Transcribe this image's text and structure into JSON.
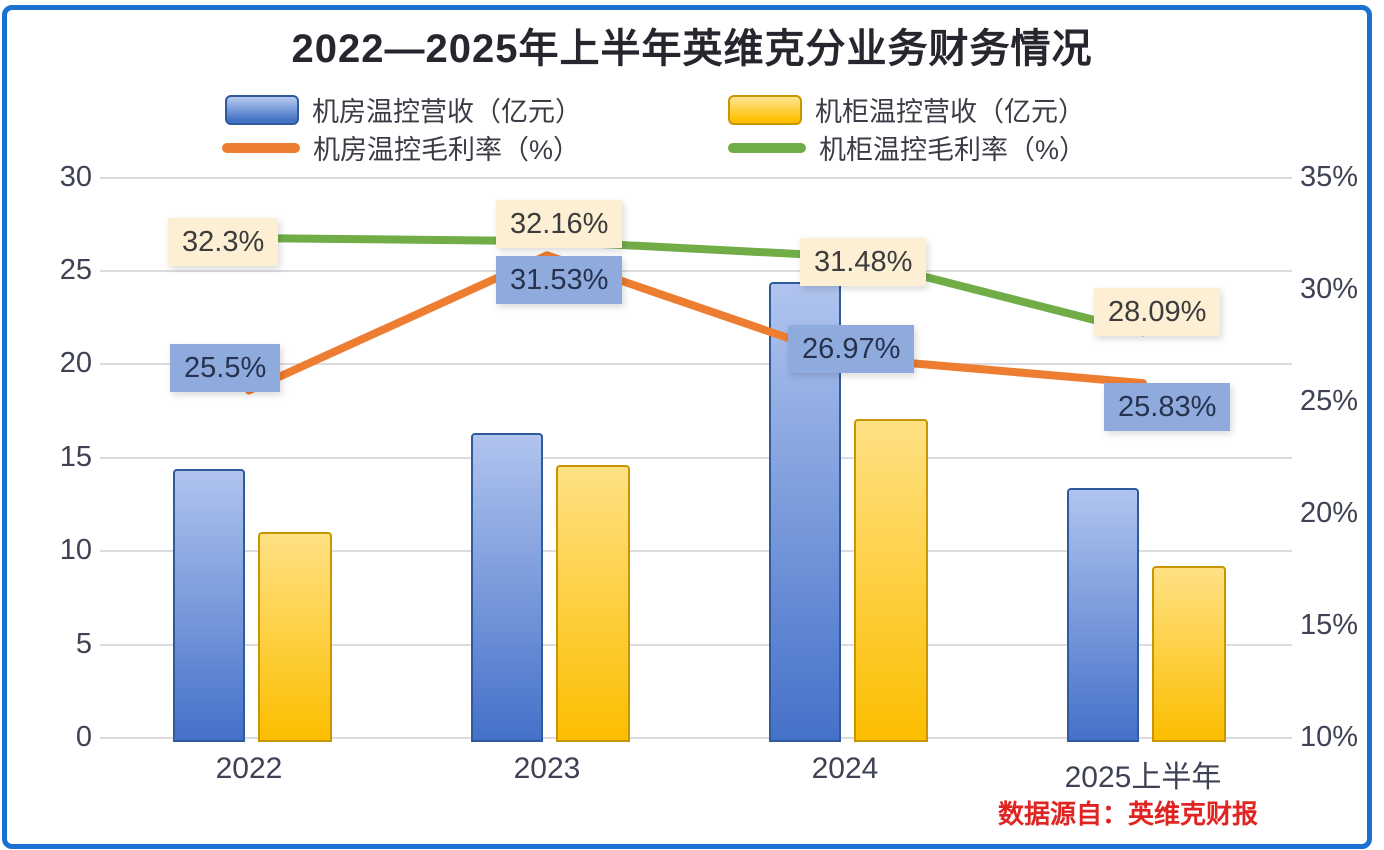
{
  "chart_data": {
    "type": "combo-bar-line",
    "title": "2022—2025年上半年英维克分业务财务情况",
    "categories": [
      "2022",
      "2023",
      "2024",
      "2025上半年"
    ],
    "series": [
      {
        "name": "机房温控营收（亿元）",
        "type": "bar",
        "axis": "left",
        "color": "#4472C4",
        "values": [
          14.4,
          16.3,
          24.4,
          13.4
        ]
      },
      {
        "name": "机柜温控营收（亿元）",
        "type": "bar",
        "axis": "left",
        "color": "#FFC000",
        "values": [
          11.0,
          14.6,
          17.1,
          9.2
        ]
      },
      {
        "name": "机房温控毛利率（%）",
        "type": "line",
        "axis": "right",
        "color": "#ED7D31",
        "values": [
          25.5,
          31.53,
          26.97,
          25.83
        ],
        "point_labels": [
          "25.5%",
          "31.53%",
          "26.97%",
          "25.83%"
        ],
        "label_style": "blue"
      },
      {
        "name": "机柜温控毛利率（%）",
        "type": "line",
        "axis": "right",
        "color": "#70AD47",
        "values": [
          32.3,
          32.16,
          31.48,
          28.09
        ],
        "point_labels": [
          "32.3%",
          "32.16%",
          "31.48%",
          "28.09%"
        ],
        "label_style": "cream"
      }
    ],
    "left_axis": {
      "min": 0,
      "max": 30,
      "tick_step": 5,
      "ticks": [
        "0",
        "5",
        "10",
        "15",
        "20",
        "25",
        "30"
      ]
    },
    "right_axis": {
      "min": 10,
      "max": 35,
      "tick_step": 5,
      "ticks": [
        "10%",
        "15%",
        "20%",
        "25%",
        "30%",
        "35%"
      ]
    },
    "grid": true,
    "legend_position": "top",
    "source_note": "数据源自：英维克财报",
    "colors": {
      "frame_border": "#1b70d2",
      "bar_blue": "#4472C4",
      "bar_blue_border": "#2f5b9e",
      "bar_yellow": "#FFC000",
      "bar_yellow_border": "#c79600",
      "line_orange": "#ED7D31",
      "line_green": "#70AD47",
      "point_label_cream_bg": "#FCEFD3",
      "point_label_blue_bg": "#8FAADC",
      "title_text": "#26262e",
      "axis_text": "#3f4254",
      "gridline": "#dcdce0",
      "source_text": "#e02421"
    }
  }
}
